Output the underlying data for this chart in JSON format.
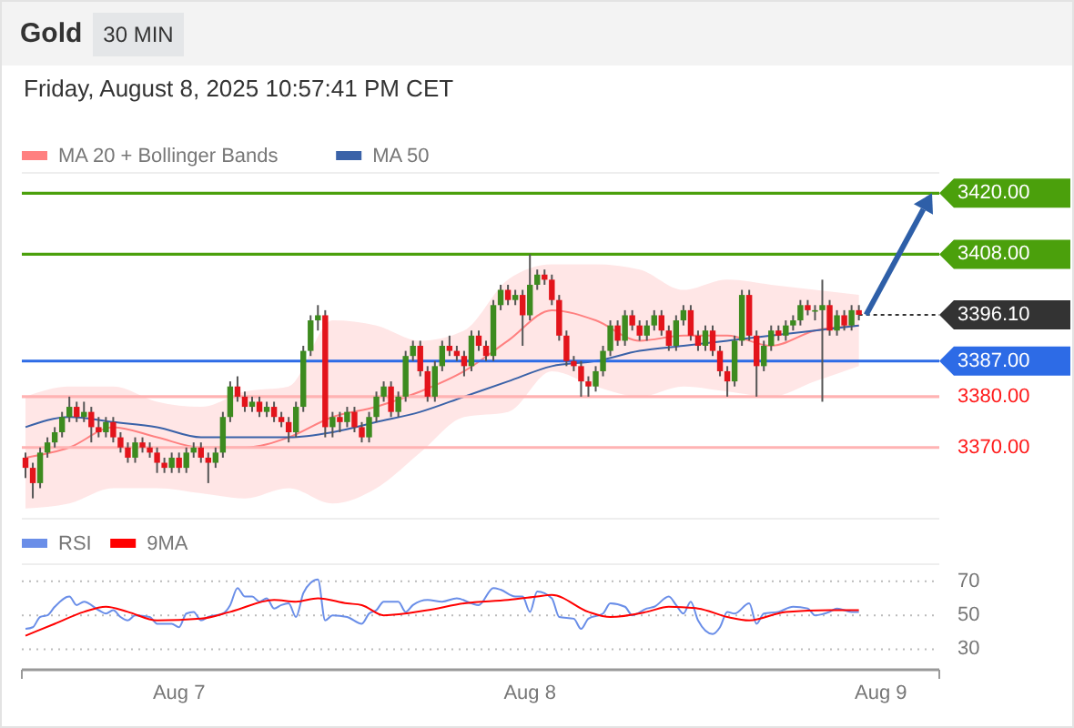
{
  "chart_data": [
    {
      "type": "candlestick",
      "title": "Gold",
      "subtitle": "Friday, August 8, 2025 10:57:41 PM CET",
      "annotations": [
        "30 MIN"
      ],
      "x": [
        "2025-08-06T13:30",
        "2025-08-06T14:00",
        "2025-08-06T14:30",
        "2025-08-06T15:00",
        "2025-08-06T15:30",
        "2025-08-06T16:00",
        "2025-08-06T16:30",
        "2025-08-06T17:00",
        "2025-08-06T17:30",
        "2025-08-06T18:00",
        "2025-08-06T18:30",
        "2025-08-06T19:00",
        "2025-08-06T19:30",
        "2025-08-06T20:00",
        "2025-08-06T20:30",
        "2025-08-06T21:00",
        "2025-08-06T21:30",
        "2025-08-06T22:00",
        "2025-08-06T22:30",
        "2025-08-06T23:00",
        "2025-08-06T23:30",
        "2025-08-07T00:00",
        "2025-08-07T00:30",
        "2025-08-07T01:00",
        "2025-08-07T01:30",
        "2025-08-07T02:00",
        "2025-08-07T02:30",
        "2025-08-07T03:00",
        "2025-08-07T03:30",
        "2025-08-07T04:00",
        "2025-08-07T04:30",
        "2025-08-07T05:00",
        "2025-08-07T05:30",
        "2025-08-07T06:00",
        "2025-08-07T06:30",
        "2025-08-07T07:00",
        "2025-08-07T07:30",
        "2025-08-07T08:00",
        "2025-08-07T08:30",
        "2025-08-07T09:00",
        "2025-08-07T09:30",
        "2025-08-07T10:00",
        "2025-08-07T10:30",
        "2025-08-07T11:00",
        "2025-08-07T11:30",
        "2025-08-07T12:00",
        "2025-08-07T12:30",
        "2025-08-07T13:00",
        "2025-08-07T13:30",
        "2025-08-07T14:00",
        "2025-08-07T14:30",
        "2025-08-07T15:00",
        "2025-08-07T15:30",
        "2025-08-07T16:00",
        "2025-08-07T16:30",
        "2025-08-07T17:00",
        "2025-08-07T17:30",
        "2025-08-07T18:00",
        "2025-08-07T18:30",
        "2025-08-07T19:00",
        "2025-08-07T19:30",
        "2025-08-07T20:00",
        "2025-08-07T20:30",
        "2025-08-07T21:00",
        "2025-08-07T21:30",
        "2025-08-07T22:00",
        "2025-08-07T22:30",
        "2025-08-07T23:00",
        "2025-08-07T23:30",
        "2025-08-08T00:00",
        "2025-08-08T00:30",
        "2025-08-08T01:00",
        "2025-08-08T01:30",
        "2025-08-08T02:00",
        "2025-08-08T02:30",
        "2025-08-08T03:00",
        "2025-08-08T03:30",
        "2025-08-08T04:00",
        "2025-08-08T04:30",
        "2025-08-08T05:00",
        "2025-08-08T05:30",
        "2025-08-08T06:00",
        "2025-08-08T06:30",
        "2025-08-08T07:00",
        "2025-08-08T07:30",
        "2025-08-08T08:00",
        "2025-08-08T08:30",
        "2025-08-08T09:00",
        "2025-08-08T09:30",
        "2025-08-08T10:00",
        "2025-08-08T10:30",
        "2025-08-08T11:00",
        "2025-08-08T11:30",
        "2025-08-08T12:00",
        "2025-08-08T12:30",
        "2025-08-08T13:00",
        "2025-08-08T13:30",
        "2025-08-08T14:00",
        "2025-08-08T14:30",
        "2025-08-08T15:00",
        "2025-08-08T15:30",
        "2025-08-08T16:00",
        "2025-08-08T16:30",
        "2025-08-08T17:00",
        "2025-08-08T17:30",
        "2025-08-08T18:00",
        "2025-08-08T18:30",
        "2025-08-08T19:00",
        "2025-08-08T19:30",
        "2025-08-08T20:00",
        "2025-08-08T20:30",
        "2025-08-08T21:00",
        "2025-08-08T21:30",
        "2025-08-08T22:00",
        "2025-08-08T22:30"
      ],
      "ohlc": [
        [
          3368,
          3369,
          3364,
          3366
        ],
        [
          3366,
          3367,
          3360,
          3363
        ],
        [
          3363,
          3370,
          3362,
          3369
        ],
        [
          3369,
          3372,
          3368,
          3371
        ],
        [
          3371,
          3374,
          3370,
          3373
        ],
        [
          3373,
          3377,
          3372,
          3376
        ],
        [
          3376,
          3380,
          3375,
          3378
        ],
        [
          3378,
          3379,
          3375,
          3376
        ],
        [
          3376,
          3379,
          3375,
          3377
        ],
        [
          3377,
          3378,
          3371,
          3374
        ],
        [
          3374,
          3376,
          3372,
          3373
        ],
        [
          3373,
          3376,
          3372,
          3375
        ],
        [
          3375,
          3376,
          3371,
          3372
        ],
        [
          3372,
          3373,
          3369,
          3370
        ],
        [
          3370,
          3371,
          3367,
          3368
        ],
        [
          3368,
          3372,
          3367,
          3371
        ],
        [
          3371,
          3372,
          3369,
          3370
        ],
        [
          3370,
          3371,
          3368,
          3369
        ],
        [
          3369,
          3370,
          3365,
          3367
        ],
        [
          3367,
          3368,
          3365,
          3366
        ],
        [
          3366,
          3369,
          3365,
          3368
        ],
        [
          3368,
          3369,
          3365,
          3366
        ],
        [
          3366,
          3370,
          3365,
          3369
        ],
        [
          3369,
          3371,
          3368,
          3370
        ],
        [
          3370,
          3371,
          3367,
          3368
        ],
        [
          3368,
          3369,
          3363,
          3367
        ],
        [
          3367,
          3370,
          3366,
          3369
        ],
        [
          3369,
          3377,
          3368,
          3376
        ],
        [
          3376,
          3383,
          3375,
          3382
        ],
        [
          3382,
          3384,
          3379,
          3380
        ],
        [
          3380,
          3381,
          3377,
          3378
        ],
        [
          3378,
          3380,
          3377,
          3379
        ],
        [
          3379,
          3380,
          3376,
          3377
        ],
        [
          3377,
          3379,
          3376,
          3378
        ],
        [
          3378,
          3379,
          3375,
          3376
        ],
        [
          3376,
          3377,
          3374,
          3375
        ],
        [
          3375,
          3376,
          3371,
          3373
        ],
        [
          3373,
          3379,
          3372,
          3378
        ],
        [
          3378,
          3390,
          3377,
          3389
        ],
        [
          3389,
          3396,
          3388,
          3395
        ],
        [
          3395,
          3398,
          3393,
          3396
        ],
        [
          3396,
          3397,
          3372,
          3374
        ],
        [
          3374,
          3377,
          3372,
          3376
        ],
        [
          3376,
          3377,
          3373,
          3375
        ],
        [
          3375,
          3378,
          3374,
          3377
        ],
        [
          3377,
          3378,
          3373,
          3374
        ],
        [
          3374,
          3375,
          3371,
          3372
        ],
        [
          3372,
          3377,
          3371,
          3376
        ],
        [
          3376,
          3381,
          3375,
          3380
        ],
        [
          3380,
          3383,
          3379,
          3382
        ],
        [
          3382,
          3383,
          3376,
          3377
        ],
        [
          3377,
          3381,
          3376,
          3380
        ],
        [
          3380,
          3389,
          3379,
          3388
        ],
        [
          3388,
          3391,
          3387,
          3390
        ],
        [
          3390,
          3391,
          3384,
          3385
        ],
        [
          3385,
          3386,
          3379,
          3380
        ],
        [
          3380,
          3387,
          3379,
          3386
        ],
        [
          3386,
          3391,
          3385,
          3390
        ],
        [
          3390,
          3392,
          3388,
          3389
        ],
        [
          3389,
          3390,
          3387,
          3388
        ],
        [
          3388,
          3389,
          3384,
          3386
        ],
        [
          3386,
          3393,
          3385,
          3392
        ],
        [
          3392,
          3393,
          3389,
          3390
        ],
        [
          3390,
          3391,
          3387,
          3388
        ],
        [
          3388,
          3399,
          3387,
          3398
        ],
        [
          3398,
          3402,
          3397,
          3401
        ],
        [
          3401,
          3402,
          3398,
          3399
        ],
        [
          3399,
          3401,
          3398,
          3400
        ],
        [
          3400,
          3401,
          3390,
          3396
        ],
        [
          3396,
          3408,
          3395,
          3402
        ],
        [
          3402,
          3405,
          3401,
          3404
        ],
        [
          3404,
          3405,
          3402,
          3403
        ],
        [
          3403,
          3404,
          3398,
          3399
        ],
        [
          3399,
          3400,
          3391,
          3392
        ],
        [
          3392,
          3393,
          3386,
          3387
        ],
        [
          3387,
          3388,
          3385,
          3386
        ],
        [
          3386,
          3387,
          3380,
          3383
        ],
        [
          3383,
          3384,
          3380,
          3382
        ],
        [
          3382,
          3386,
          3381,
          3385
        ],
        [
          3385,
          3390,
          3384,
          3389
        ],
        [
          3389,
          3395,
          3388,
          3394
        ],
        [
          3394,
          3395,
          3390,
          3391
        ],
        [
          3391,
          3397,
          3390,
          3396
        ],
        [
          3396,
          3397,
          3393,
          3394
        ],
        [
          3394,
          3395,
          3391,
          3392
        ],
        [
          3392,
          3395,
          3391,
          3394
        ],
        [
          3394,
          3397,
          3393,
          3396
        ],
        [
          3396,
          3397,
          3392,
          3393
        ],
        [
          3393,
          3394,
          3389,
          3390
        ],
        [
          3390,
          3396,
          3389,
          3395
        ],
        [
          3395,
          3398,
          3394,
          3397
        ],
        [
          3397,
          3398,
          3391,
          3392
        ],
        [
          3392,
          3393,
          3389,
          3390
        ],
        [
          3390,
          3394,
          3389,
          3393
        ],
        [
          3393,
          3394,
          3388,
          3389
        ],
        [
          3389,
          3390,
          3384,
          3385
        ],
        [
          3385,
          3386,
          3380,
          3383
        ],
        [
          3383,
          3392,
          3382,
          3391
        ],
        [
          3391,
          3401,
          3390,
          3400
        ],
        [
          3400,
          3401,
          3391,
          3392
        ],
        [
          3392,
          3393,
          3380,
          3386
        ],
        [
          3386,
          3391,
          3385,
          3390
        ],
        [
          3390,
          3394,
          3389,
          3393
        ],
        [
          3393,
          3394,
          3391,
          3392
        ],
        [
          3392,
          3395,
          3391,
          3394
        ],
        [
          3394,
          3396,
          3393,
          3395
        ],
        [
          3395,
          3399,
          3394,
          3398
        ],
        [
          3398,
          3399,
          3396,
          3397
        ],
        [
          3397,
          3398,
          3395,
          3397
        ],
        [
          3397,
          3403,
          3379,
          3398
        ],
        [
          3398,
          3399,
          3392,
          3393
        ],
        [
          3393,
          3397,
          3392,
          3396
        ],
        [
          3396,
          3397,
          3393,
          3394
        ],
        [
          3394,
          3398,
          3393,
          3397
        ],
        [
          3397,
          3398,
          3395,
          3396.1
        ]
      ],
      "series": [
        {
          "name": "MA 20 + Bollinger Bands",
          "type": "line",
          "color": "#ff8080",
          "x": [
            "2025-08-06T13:30",
            "2025-08-06T16:30",
            "2025-08-06T19:30",
            "2025-08-06T22:30",
            "2025-08-07T01:30",
            "2025-08-07T04:30",
            "2025-08-07T07:30",
            "2025-08-07T10:30",
            "2025-08-07T13:30",
            "2025-08-07T16:30",
            "2025-08-07T19:30",
            "2025-08-07T22:30",
            "2025-08-08T01:30",
            "2025-08-08T04:30",
            "2025-08-08T07:30",
            "2025-08-08T10:30",
            "2025-08-08T13:30",
            "2025-08-08T16:30",
            "2025-08-08T19:30",
            "2025-08-08T22:30"
          ],
          "values": [
            3368,
            3370,
            3374,
            3372,
            3370,
            3370,
            3372,
            3376,
            3378,
            3381,
            3385,
            3391,
            3397,
            3395,
            3391,
            3392,
            3392,
            3390,
            3393,
            3394
          ],
          "lower": [
            3358,
            3359,
            3362,
            3362,
            3361,
            3360,
            3362,
            3359,
            3362,
            3369,
            3376,
            3377,
            3385,
            3382,
            3380,
            3382,
            3381,
            3380,
            3383,
            3386
          ],
          "upper": [
            3380,
            3382,
            3382,
            3379,
            3378,
            3381,
            3382,
            3395,
            3394,
            3391,
            3393,
            3403,
            3406,
            3406,
            3405,
            3401,
            3403,
            3402,
            3401,
            3400
          ]
        },
        {
          "name": "MA 50",
          "type": "line",
          "color": "#3a62a8",
          "x": [
            "2025-08-06T13:30",
            "2025-08-06T16:30",
            "2025-08-06T19:30",
            "2025-08-06T22:30",
            "2025-08-07T01:30",
            "2025-08-07T04:30",
            "2025-08-07T07:30",
            "2025-08-07T10:30",
            "2025-08-07T13:30",
            "2025-08-07T16:30",
            "2025-08-07T19:30",
            "2025-08-07T22:30",
            "2025-08-08T01:30",
            "2025-08-08T04:30",
            "2025-08-08T07:30",
            "2025-08-08T10:30",
            "2025-08-08T13:30",
            "2025-08-08T16:30",
            "2025-08-08T19:30",
            "2025-08-08T22:30"
          ],
          "values": [
            3374,
            3376,
            3375,
            3374,
            3372,
            3372,
            3372,
            3373,
            3375,
            3377,
            3380,
            3383,
            3386,
            3387,
            3389,
            3390,
            3391,
            3392,
            3393,
            3394
          ]
        }
      ],
      "xlim": [
        "2025-08-06T13:15",
        "2025-08-09T04:00"
      ],
      "ylim": [
        3356,
        3424
      ],
      "tick_labels": false,
      "legend": "top left",
      "ref_lines": [
        {
          "axis": "y",
          "value": 3420,
          "label": "3420.00",
          "color": "#4ba00c"
        },
        {
          "axis": "y",
          "value": 3408,
          "label": "3408.00",
          "color": "#4ba00c"
        },
        {
          "axis": "y",
          "value": 3396.1,
          "label": "3396.10",
          "color": "#333333",
          "line_style": "dotted"
        },
        {
          "axis": "y",
          "value": 3387,
          "label": "3387.00",
          "color": "#2d6be6"
        },
        {
          "axis": "y",
          "value": 3380,
          "label": "3380.00",
          "color": "#ffb3b3"
        },
        {
          "axis": "y",
          "value": 3370,
          "label": "3370.00",
          "color": "#ffb3b3"
        }
      ]
    },
    {
      "type": "line",
      "legend": "top left",
      "grid": "y",
      "line_style": "solid",
      "xlim": [
        "2025-08-06T13:15",
        "2025-08-09T04:00"
      ],
      "ylim": [
        18,
        80
      ],
      "yticks": [
        30,
        50,
        70
      ],
      "xticks": [
        {
          "value": "2025-08-07",
          "label": "Aug 7"
        },
        {
          "value": "2025-08-08",
          "label": "Aug 8"
        },
        {
          "value": "2025-08-09",
          "label": "Aug 9"
        }
      ],
      "series": [
        {
          "name": "RSI",
          "color": "#6a8ee8",
          "x": [
            "2025-08-06T13:30",
            "2025-08-06T14:00",
            "2025-08-06T14:30",
            "2025-08-06T15:00",
            "2025-08-06T15:30",
            "2025-08-06T16:30",
            "2025-08-06T17:00",
            "2025-08-06T17:30",
            "2025-08-06T18:30",
            "2025-08-06T19:00",
            "2025-08-06T19:30",
            "2025-08-06T20:00",
            "2025-08-06T20:30",
            "2025-08-06T21:00",
            "2025-08-06T22:00",
            "2025-08-06T22:30",
            "2025-08-06T23:30",
            "2025-08-07T00:00",
            "2025-08-07T00:30",
            "2025-08-07T01:00",
            "2025-08-07T01:30",
            "2025-08-07T02:00",
            "2025-08-07T03:00",
            "2025-08-07T03:30",
            "2025-08-07T04:00",
            "2025-08-07T04:30",
            "2025-08-07T05:00",
            "2025-08-07T05:30",
            "2025-08-07T06:00",
            "2025-08-07T06:30",
            "2025-08-07T07:00",
            "2025-08-07T07:30",
            "2025-08-07T08:00",
            "2025-08-07T08:30",
            "2025-08-07T09:00",
            "2025-08-07T09:30",
            "2025-08-07T10:00",
            "2025-08-07T10:30",
            "2025-08-07T11:30",
            "2025-08-07T12:30",
            "2025-08-07T13:00",
            "2025-08-07T13:30",
            "2025-08-07T14:00",
            "2025-08-07T15:00",
            "2025-08-07T15:30",
            "2025-08-07T16:00",
            "2025-08-07T17:00",
            "2025-08-07T18:00",
            "2025-08-07T19:00",
            "2025-08-07T20:00",
            "2025-08-07T20:30",
            "2025-08-07T21:30",
            "2025-08-07T22:00",
            "2025-08-07T23:00",
            "2025-08-07T23:30",
            "2025-08-08T00:00",
            "2025-08-08T00:30",
            "2025-08-08T01:30",
            "2025-08-08T02:00",
            "2025-08-08T03:00",
            "2025-08-08T03:30",
            "2025-08-08T04:00",
            "2025-08-08T05:00",
            "2025-08-08T05:30",
            "2025-08-08T06:30",
            "2025-08-08T07:00",
            "2025-08-08T08:00",
            "2025-08-08T08:30",
            "2025-08-08T09:30",
            "2025-08-08T10:00",
            "2025-08-08T10:30",
            "2025-08-08T11:00",
            "2025-08-08T11:30",
            "2025-08-08T12:30",
            "2025-08-08T13:00",
            "2025-08-08T13:30",
            "2025-08-08T14:00",
            "2025-08-08T15:00",
            "2025-08-08T15:30",
            "2025-08-08T16:00",
            "2025-08-08T17:00",
            "2025-08-08T18:00",
            "2025-08-08T19:00",
            "2025-08-08T19:30",
            "2025-08-08T20:30",
            "2025-08-08T21:00",
            "2025-08-08T22:00",
            "2025-08-08T22:30"
          ],
          "values": [
            42,
            43,
            49,
            50,
            55,
            61,
            56,
            58,
            53,
            51,
            53,
            49,
            47,
            50,
            49,
            45,
            45,
            43,
            51,
            52,
            47,
            49,
            51,
            56,
            66,
            61,
            61,
            58,
            60,
            54,
            56,
            57,
            49,
            63,
            69,
            71,
            47,
            50,
            49,
            45,
            51,
            53,
            58,
            58,
            52,
            56,
            59,
            58,
            60,
            57,
            56,
            66,
            65,
            61,
            61,
            52,
            64,
            60,
            49,
            48,
            42,
            48,
            51,
            57,
            55,
            50,
            54,
            55,
            61,
            56,
            51,
            58,
            47,
            39,
            43,
            52,
            51,
            57,
            45,
            51,
            52,
            55,
            54,
            50,
            52,
            54,
            52,
            52
          ]
        },
        {
          "name": "9MA",
          "color": "#ff0000",
          "x": [
            "2025-08-06T13:30",
            "2025-08-06T15:30",
            "2025-08-06T17:30",
            "2025-08-06T19:00",
            "2025-08-06T20:30",
            "2025-08-06T22:30",
            "2025-08-07T01:30",
            "2025-08-07T03:30",
            "2025-08-07T06:30",
            "2025-08-07T08:00",
            "2025-08-07T09:30",
            "2025-08-07T11:30",
            "2025-08-07T12:30",
            "2025-08-07T14:00",
            "2025-08-07T17:00",
            "2025-08-07T19:30",
            "2025-08-07T22:30",
            "2025-08-08T00:30",
            "2025-08-08T01:30",
            "2025-08-08T04:00",
            "2025-08-08T05:30",
            "2025-08-08T08:00",
            "2025-08-08T09:30",
            "2025-08-08T11:30",
            "2025-08-08T13:30",
            "2025-08-08T15:00",
            "2025-08-08T17:30",
            "2025-08-08T20:30",
            "2025-08-08T22:30"
          ],
          "values": [
            38,
            45,
            52,
            55,
            52,
            47,
            48,
            52,
            59,
            58,
            60,
            57,
            56,
            50,
            53,
            57,
            59,
            61,
            62,
            52,
            49,
            52,
            55,
            54,
            49,
            47,
            52,
            53,
            53
          ]
        }
      ]
    }
  ]
}
